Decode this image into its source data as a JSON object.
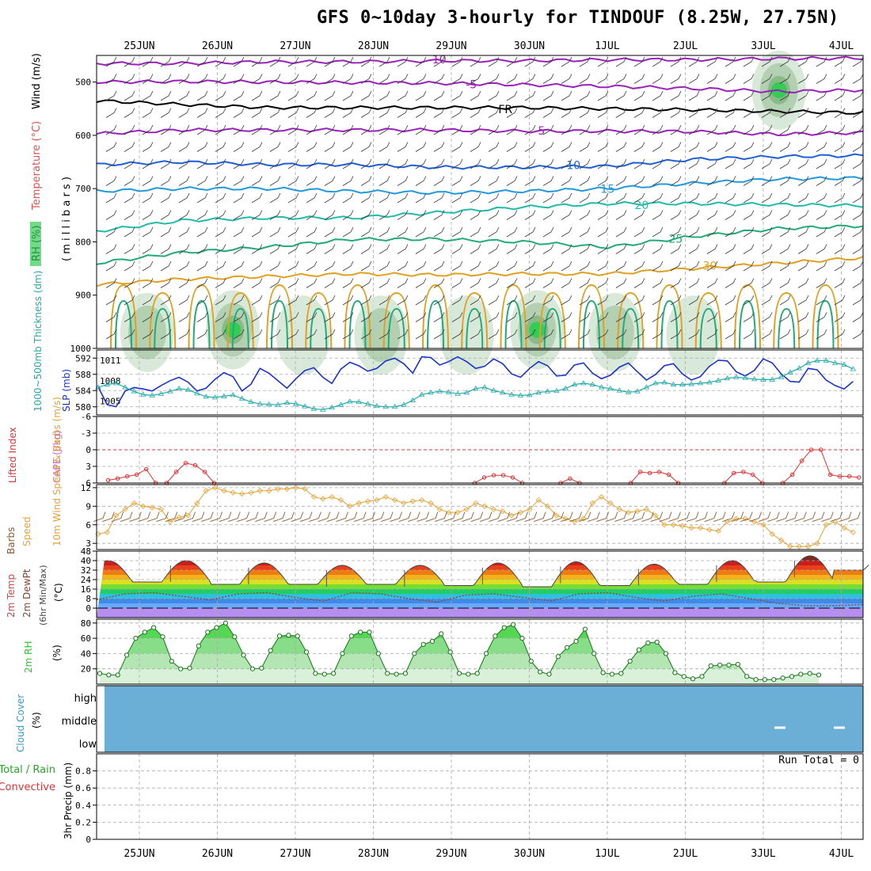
{
  "title": "GFS 0~10day 3-hourly for TINDOUF (8.25W, 27.75N)",
  "colors": {
    "grid": "#aaaaaa",
    "slp": "#1a33cc",
    "thickness": "#22aaaa",
    "li": "#dd3333",
    "windspeed": "#e8a030",
    "barb": "#8b5a2b",
    "rh": "#22cc22",
    "cloud": "#6baed6",
    "temp_minus5": "#9922bb",
    "temp_freeze": "#000000",
    "temp_10": "#1f5fd6",
    "temp_15": "#2299dd",
    "temp_20": "#22bbaa",
    "temp_25": "#22aa77",
    "temp_30": "#e0a020"
  },
  "chart_data": {
    "date_ticks": [
      "25JUN",
      "26JUN",
      "27JUN",
      "28JUN",
      "29JUN",
      "30JUN",
      "1JUL",
      "2JUL",
      "3JUL",
      "4JUL"
    ],
    "panels": [
      {
        "id": "upper_air",
        "type": "contour",
        "ylabel_parts": [
          "RH (%)",
          "Temperature (°C)",
          "Wind (m/s)",
          "( m i l l i b a r s )"
        ],
        "yticks": [
          500,
          600,
          700,
          800,
          900,
          1000
        ],
        "ylim": [
          450,
          1000
        ],
        "temperature_contours": [
          {
            "label": "-10",
            "p": [
              465,
              465,
              462,
              462,
              460,
              460,
              458,
              458,
              456,
              455
            ]
          },
          {
            "label": "-5",
            "p": [
              500,
              499,
              500,
              501,
              502,
              505,
              508,
              512,
              518,
              515
            ]
          },
          {
            "label": "FR",
            "p": [
              535,
              542,
              548,
              548,
              548,
              548,
              550,
              552,
              555,
              558
            ]
          },
          {
            "label": "-5",
            "p": [
              597,
              590,
              590,
              590,
              590,
              592,
              592,
              593,
              598,
              595
            ]
          },
          {
            "label": "10",
            "p": [
              655,
              650,
              655,
              655,
              660,
              660,
              658,
              645,
              640,
              638
            ]
          },
          {
            "label": "15",
            "p": [
              705,
              700,
              700,
              705,
              708,
              705,
              700,
              690,
              682,
              680
            ]
          },
          {
            "label": "20",
            "p": [
              780,
              760,
              755,
              755,
              745,
              735,
              728,
              728,
              730,
              732
            ]
          },
          {
            "label": "25",
            "p": [
              840,
              820,
              810,
              795,
              795,
              800,
              810,
              790,
              775,
              770
            ]
          },
          {
            "label": "30",
            "p": [
              880,
              870,
              865,
              860,
              862,
              860,
              860,
              850,
              840,
              830
            ]
          }
        ],
        "rh_patches": [
          {
            "x": 25.1,
            "p": 970,
            "level": 2
          },
          {
            "x": 26.2,
            "p": 965,
            "level": 3
          },
          {
            "x": 27.1,
            "p": 975,
            "level": 1
          },
          {
            "x": 28.1,
            "p": 975,
            "level": 2
          },
          {
            "x": 29.2,
            "p": 975,
            "level": 1
          },
          {
            "x": 30.1,
            "p": 965,
            "level": 3
          },
          {
            "x": 31.1,
            "p": 970,
            "level": 2
          },
          {
            "x": 32.1,
            "p": 975,
            "level": 1
          },
          {
            "x": 33.2,
            "p": 515,
            "level": 3
          }
        ]
      },
      {
        "id": "slp_thickness",
        "type": "line",
        "ylabel_left": "1000~500mb Thickness (dm)",
        "ylabel_right": "SLP (mb)",
        "yticks_left": [
          580,
          584,
          588,
          592
        ],
        "yticks_right": [
          1005,
          1008,
          1011
        ],
        "series": [
          {
            "name": "SLP (mb)",
            "values": [
              1007.1,
              1004.5,
              1004.2,
              1006.5,
              1007.0,
              1006.8,
              1006.5,
              1007.3,
              1008.0,
              1008.5,
              1007.8,
              1006.5,
              1006.9,
              1008.2,
              1009.2,
              1008.6,
              1006.5,
              1007.5,
              1009.8,
              1009.1,
              1008.0,
              1006.9,
              1008.3,
              1009.5,
              1009.9,
              1008.5,
              1007.6,
              1009.7,
              1010.7,
              1010.2,
              1009.4,
              1009.8,
              1010.9,
              1011.3,
              1010.5,
              1009.1,
              1011.5,
              1011.4,
              1010.3,
              1010.8,
              1011.5,
              1010.8,
              1009.8,
              1010.1,
              1011.2,
              1010.5,
              1009.0,
              1008.5,
              1009.8,
              1010.8,
              1010.2,
              1008.7,
              1008.8,
              1010.3,
              1010.6,
              1009.1,
              1008.3,
              1008.8,
              1010.0,
              1010.6,
              1009.3,
              1008.1,
              1008.9,
              1010.2,
              1010.5,
              1009.0,
              1008.1,
              1008.6,
              1010.1,
              1011.0,
              1010.9,
              1009.3,
              1008.7,
              1009.5,
              1011.2,
              1010.6,
              1009.0,
              1007.9,
              1007.8,
              1009.8,
              1009.6,
              1008.1,
              1007.3,
              1006.8,
              1007.9
            ]
          },
          {
            "name": "1000~500mb Thickness (dm)",
            "values": [
              584.8,
              585.5,
              585.8,
              584.8,
              583.8,
              583.0,
              582.8,
              583.2,
              583.8,
              584.5,
              584.2,
              583.3,
              582.5,
              582.3,
              582.6,
              582.9,
              582.0,
              581.2,
              580.7,
              580.6,
              580.5,
              581.0,
              580.7,
              580.1,
              579.5,
              579.3,
              579.8,
              580.5,
              581.3,
              581.2,
              580.7,
              580.2,
              580.0,
              580.0,
              580.5,
              581.6,
              583.0,
              583.5,
              583.8,
              583.6,
              583.2,
              583.5,
              584.5,
              584.8,
              584.0,
              583.5,
              583.0,
              582.8,
              582.9,
              583.5,
              583.8,
              583.9,
              584.5,
              585.5,
              585.8,
              585.5,
              584.8,
              584.5,
              584.0,
              583.6,
              583.8,
              584.8,
              585.8,
              586.0,
              585.5,
              585.5,
              585.6,
              585.8,
              586.0,
              586.5,
              587.0,
              587.3,
              587.1,
              586.8,
              586.7,
              586.7,
              587.3,
              588.5,
              589.5,
              590.8,
              591.4,
              591.4,
              590.8,
              590.4,
              589.3
            ]
          }
        ]
      },
      {
        "id": "lifted_index",
        "type": "line",
        "ylabel": "Lifted Index",
        "ylabel2": "CAPE (J/kg)",
        "yticks": [
          "6",
          "3",
          "0",
          "-3",
          "-6"
        ],
        "ylim": [
          6,
          -6
        ],
        "dashed_zero": true,
        "series": [
          {
            "name": "Lifted Index",
            "segments": [
              {
                "x0": 24.6,
                "values": [
                  5.5,
                  5.2,
                  4.8,
                  4.5,
                  3.5,
                  6.0
                ]
              },
              {
                "x0": 25.35,
                "values": [
                  6.0,
                  4.0,
                  2.4,
                  2.8,
                  4.0,
                  6.0
                ]
              },
              {
                "x0": 29.3,
                "values": [
                  6.0,
                  5.0,
                  4.6,
                  4.6,
                  5.0,
                  6.0
                ]
              },
              {
                "x0": 30.4,
                "values": [
                  6.0,
                  5.2,
                  6.0
                ]
              },
              {
                "x0": 31.3,
                "values": [
                  6.0,
                  4.0,
                  4.2,
                  4.0,
                  4.5,
                  6.0
                ]
              },
              {
                "x0": 32.5,
                "values": [
                  6.0,
                  4.2,
                  4.0,
                  4.5,
                  6.0
                ]
              },
              {
                "x0": 33.25,
                "values": [
                  6.0,
                  4.5,
                  2.0,
                  0.0,
                  0.0,
                  4.5,
                  4.8,
                  4.8,
                  5.0
                ]
              }
            ]
          }
        ]
      },
      {
        "id": "wind10m",
        "type": "line",
        "ylabel": "10m Wind Speed & Barbs (m/s)",
        "yticks": [
          3,
          6,
          9,
          12
        ],
        "ylim": [
          2,
          12.5
        ],
        "series": [
          {
            "name": "Speed",
            "values": [
              4.5,
              4.8,
              7.5,
              8.5,
              9.5,
              9.0,
              8.8,
              8.5,
              6.5,
              7.2,
              7.5,
              9.5,
              11.5,
              12.0,
              11.5,
              11.2,
              11.0,
              11.2,
              11.5,
              11.5,
              11.8,
              11.8,
              12.0,
              11.8,
              10.5,
              10.2,
              10.5,
              10.0,
              9.0,
              9.5,
              9.8,
              10.0,
              10.5,
              10.0,
              9.5,
              9.8,
              10.0,
              9.5,
              8.5,
              8.0,
              8.0,
              8.5,
              9.5,
              9.0,
              8.5,
              8.2,
              7.5,
              8.0,
              8.5,
              10.0,
              9.0,
              7.5,
              7.0,
              6.5,
              7.0,
              9.5,
              10.5,
              9.5,
              8.5,
              8.0,
              8.2,
              8.5,
              7.5,
              6.0,
              6.0,
              5.8,
              5.5,
              5.5,
              5.2,
              5.0,
              6.5,
              7.0,
              7.0,
              6.5,
              6.0,
              4.5,
              3.5,
              2.5,
              2.5,
              2.5,
              3.0,
              6.0,
              6.5,
              5.5,
              4.8
            ]
          }
        ]
      },
      {
        "id": "temperature2m",
        "type": "area",
        "ylabel": "2m Temp 2m DewPt (6hr Min/Max) (°C)",
        "yticks": [
          0,
          8,
          16,
          24,
          32,
          40,
          48
        ],
        "ylim": [
          -8,
          48
        ],
        "series": [
          {
            "name": "2m Temp",
            "daily_min": [
              22,
              20,
              20,
              20,
              19,
              18,
              19,
              20,
              22,
              32
            ],
            "daily_max": [
              40,
              38,
              36,
              36,
              38,
              39,
              37,
              40,
              44,
              46
            ]
          },
          {
            "name": "2m DewPt",
            "values": [
              7,
              12,
              13,
              10,
              7,
              12,
              13,
              9,
              6,
              13,
              12,
              8,
              5,
              11,
              12,
              9,
              6,
              12,
              13,
              9,
              6,
              10,
              12,
              8,
              4,
              2,
              2,
              3
            ]
          }
        ]
      },
      {
        "id": "rh2m",
        "type": "area",
        "ylabel": "2m RH (%)",
        "yticks": [
          20,
          40,
          60,
          80
        ],
        "ylim": [
          0,
          85
        ],
        "series": [
          {
            "name": "2m RH",
            "values": [
              14,
              12,
              12,
              38,
              60,
              68,
              74,
              62,
              30,
              20,
              21,
              50,
              68,
              74,
              80,
              62,
              38,
              20,
              21,
              44,
              63,
              64,
              63,
              42,
              14,
              13,
              14,
              40,
              63,
              68,
              68,
              40,
              14,
              13,
              14,
              40,
              52,
              56,
              66,
              42,
              14,
              13,
              14,
              40,
              63,
              74,
              78,
              60,
              30,
              16,
              13,
              36,
              48,
              56,
              72,
              40,
              15,
              13,
              14,
              30,
              45,
              54,
              55,
              40,
              15,
              10,
              7,
              10,
              24,
              25,
              25,
              26,
              10,
              6,
              6,
              6,
              8,
              10,
              13,
              14,
              12
            ]
          }
        ]
      },
      {
        "id": "cloud",
        "type": "heatmap",
        "ylabel": "Cloud Cover (%)",
        "levels": [
          "high",
          "middle",
          "low"
        ]
      },
      {
        "id": "precip",
        "type": "bar",
        "ylabel": "3hr Precip (mm)",
        "ylabel_side": [
          "Total / Rain",
          "Convective"
        ],
        "yticks": [
          "0",
          "0.2",
          "0.4",
          "0.6",
          "0.8"
        ],
        "ylim": [
          0,
          1.0
        ],
        "run_total": "Run Total = 0"
      }
    ]
  }
}
